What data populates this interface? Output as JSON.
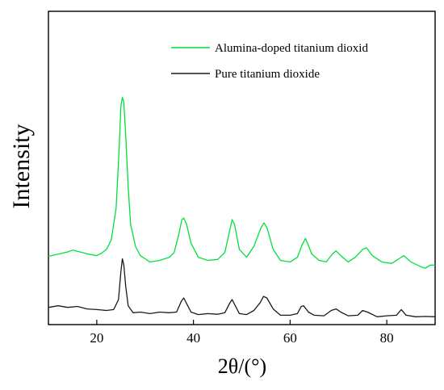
{
  "chart_data": {
    "type": "line",
    "xlabel": "2θ/(°)",
    "ylabel": "Intensity",
    "xlim": [
      10,
      90
    ],
    "ylim": [
      0,
      1
    ],
    "xticks": [
      20,
      40,
      60,
      80
    ],
    "y_ticks_shown": false,
    "grid": false,
    "legend_position": "top-right",
    "series": [
      {
        "name": "Alumina-doped titanium dioxid",
        "color": "#00e03c",
        "x": [
          10,
          12,
          14,
          15,
          16,
          18,
          20,
          21,
          22,
          23,
          24,
          24.6,
          25,
          25.3,
          25.6,
          26,
          26.5,
          27,
          28,
          29,
          30,
          31,
          33,
          35,
          36,
          37,
          37.6,
          38,
          38.6,
          39.5,
          41,
          43,
          45,
          46.5,
          47.5,
          48,
          48.5,
          49.5,
          51,
          52.5,
          54,
          54.6,
          55.2,
          56.5,
          58,
          60,
          61.5,
          62.5,
          63.2,
          64.5,
          66,
          67.5,
          68.7,
          69.5,
          70.5,
          72,
          73.5,
          75,
          75.8,
          77,
          79,
          81,
          82.5,
          83.5,
          85,
          87,
          88,
          89,
          90
        ],
        "y": [
          0.218,
          0.225,
          0.232,
          0.238,
          0.234,
          0.226,
          0.22,
          0.228,
          0.24,
          0.27,
          0.37,
          0.55,
          0.7,
          0.725,
          0.71,
          0.6,
          0.44,
          0.32,
          0.25,
          0.22,
          0.21,
          0.2,
          0.205,
          0.215,
          0.23,
          0.29,
          0.335,
          0.34,
          0.32,
          0.26,
          0.215,
          0.205,
          0.208,
          0.23,
          0.3,
          0.335,
          0.32,
          0.24,
          0.215,
          0.25,
          0.31,
          0.325,
          0.31,
          0.24,
          0.205,
          0.2,
          0.215,
          0.255,
          0.275,
          0.225,
          0.205,
          0.2,
          0.225,
          0.235,
          0.22,
          0.2,
          0.215,
          0.24,
          0.245,
          0.22,
          0.2,
          0.195,
          0.21,
          0.22,
          0.2,
          0.185,
          0.18,
          0.19,
          0.19
        ]
      },
      {
        "name": "Pure titanium dioxide",
        "color": "#1a1a1a",
        "x": [
          10,
          12,
          14,
          16,
          18,
          20,
          22,
          23.5,
          24.5,
          25,
          25.3,
          25.6,
          26,
          26.5,
          27.5,
          29,
          31,
          33,
          35,
          36.5,
          37.5,
          38,
          38.5,
          39.5,
          41,
          43,
          45,
          46.5,
          47.5,
          48,
          48.5,
          49.5,
          51,
          52.5,
          53.8,
          54.5,
          55.2,
          56.5,
          58,
          60,
          61.5,
          62.3,
          62.8,
          63.8,
          65,
          67,
          68.5,
          69.5,
          70.5,
          72,
          74,
          75,
          76,
          78,
          80,
          82,
          83,
          84,
          86,
          88,
          90
        ],
        "y": [
          0.055,
          0.06,
          0.055,
          0.058,
          0.05,
          0.048,
          0.045,
          0.048,
          0.08,
          0.17,
          0.21,
          0.19,
          0.12,
          0.06,
          0.038,
          0.04,
          0.035,
          0.04,
          0.038,
          0.04,
          0.075,
          0.085,
          0.07,
          0.04,
          0.032,
          0.035,
          0.033,
          0.038,
          0.068,
          0.08,
          0.065,
          0.035,
          0.032,
          0.045,
          0.07,
          0.09,
          0.085,
          0.05,
          0.03,
          0.03,
          0.035,
          0.058,
          0.06,
          0.04,
          0.03,
          0.028,
          0.045,
          0.05,
          0.04,
          0.028,
          0.03,
          0.045,
          0.04,
          0.025,
          0.028,
          0.03,
          0.048,
          0.03,
          0.025,
          0.026,
          0.025
        ]
      }
    ]
  }
}
